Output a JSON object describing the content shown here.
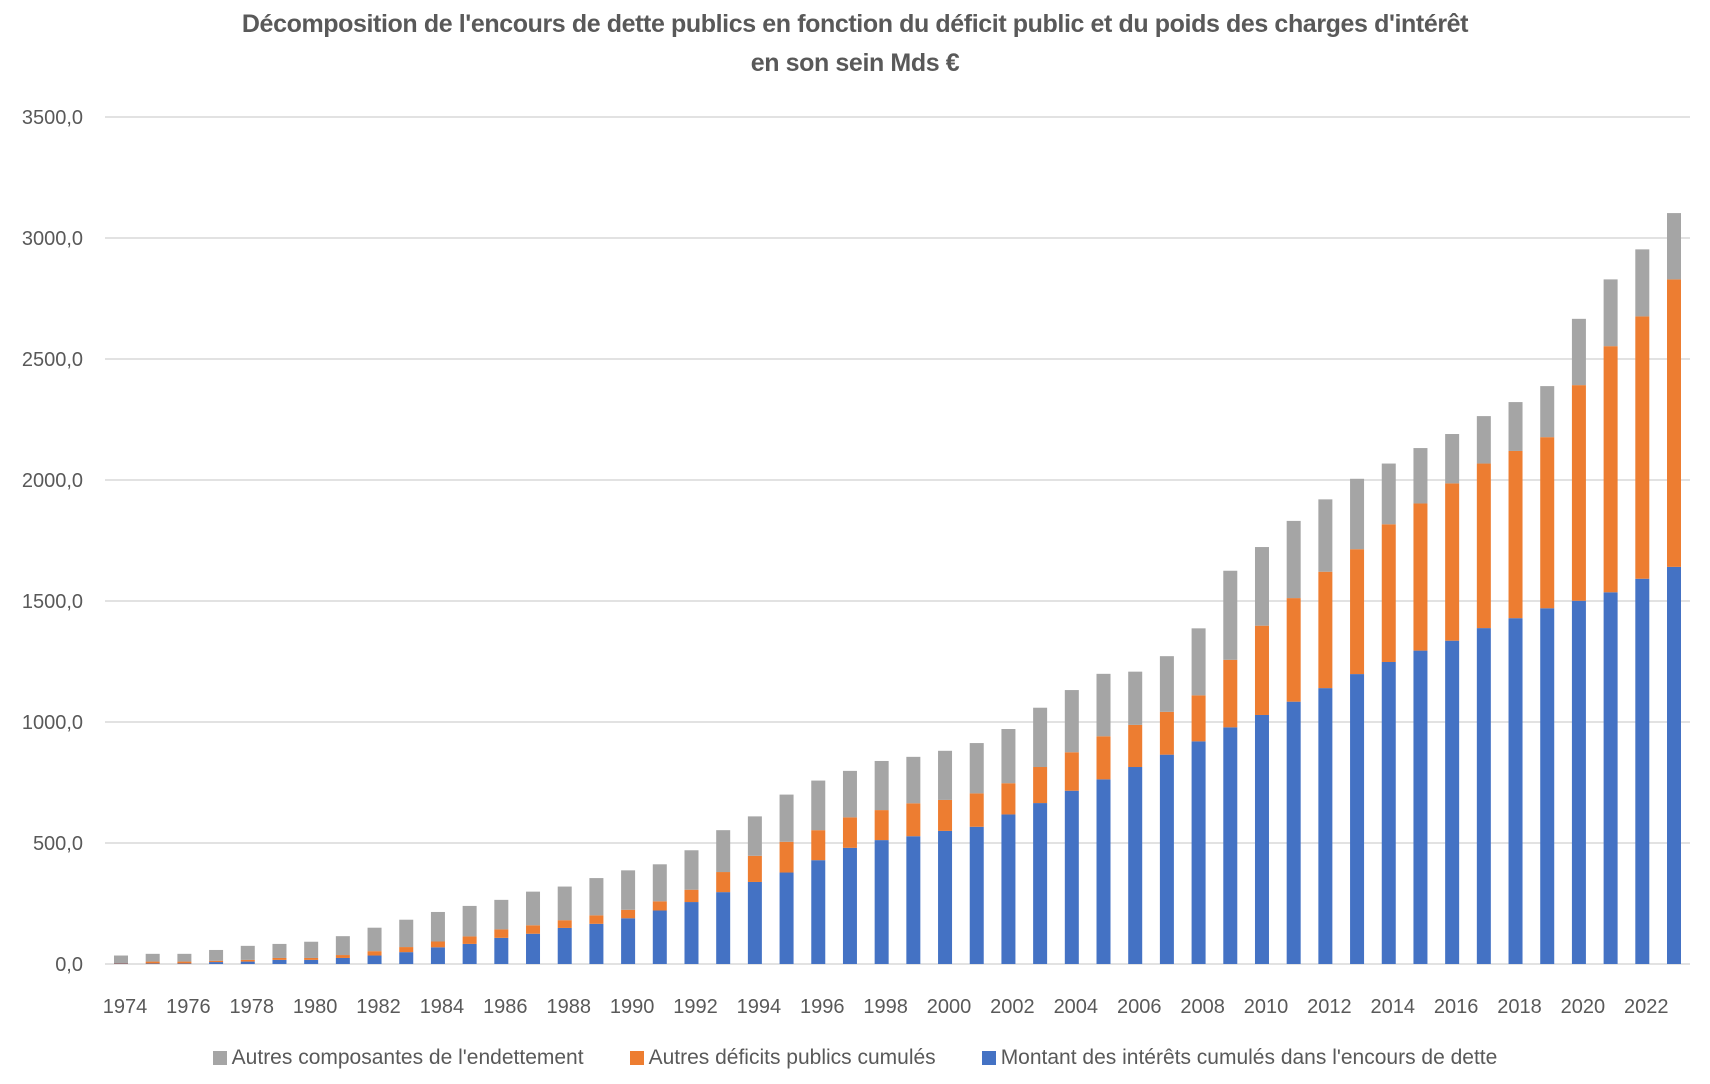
{
  "chart_data": {
    "type": "bar",
    "stacked": true,
    "title": "Décomposition de l'encours de dette publics en fonction du déficit public et du poids des charges d'intérêt en son sein Mds €",
    "title_lines": [
      "Décomposition de l'encours de dette publics en fonction du déficit public et du poids des charges d'intérêt",
      "en son sein Mds €"
    ],
    "xlabel": "",
    "ylabel": "",
    "ylim": [
      0,
      3500
    ],
    "yticks": [
      0,
      500,
      1000,
      1500,
      2000,
      2500,
      3000,
      3500
    ],
    "ytick_labels": [
      "0,0",
      "500,0",
      "1000,0",
      "1500,0",
      "2000,0",
      "2500,0",
      "3000,0",
      "3500,0"
    ],
    "grid": true,
    "legend_position": "bottom",
    "categories": [
      1974,
      1975,
      1976,
      1977,
      1978,
      1979,
      1980,
      1981,
      1982,
      1983,
      1984,
      1985,
      1986,
      1987,
      1988,
      1989,
      1990,
      1991,
      1992,
      1993,
      1994,
      1995,
      1996,
      1997,
      1998,
      1999,
      2000,
      2001,
      2002,
      2003,
      2004,
      2005,
      2006,
      2007,
      2008,
      2009,
      2010,
      2011,
      2012,
      2013,
      2014,
      2015,
      2016,
      2017,
      2018,
      2019,
      2020,
      2021,
      2022,
      2023
    ],
    "xtick_labels": [
      "1974",
      "1976",
      "1978",
      "1980",
      "1982",
      "1984",
      "1986",
      "1988",
      "1990",
      "1992",
      "1994",
      "1996",
      "1998",
      "2000",
      "2002",
      "2004",
      "2006",
      "2008",
      "2010",
      "2012",
      "2014",
      "2016",
      "2018",
      "2020",
      "2022"
    ],
    "series": [
      {
        "name": "Montant des intérêts cumulés dans l'encours de dette",
        "color": "#4472C4",
        "values": [
          2,
          2,
          2,
          8,
          10,
          17,
          17,
          25,
          35,
          49,
          69,
          83,
          108,
          125,
          149,
          166,
          189,
          221,
          256,
          297,
          339,
          378,
          429,
          480,
          512,
          528,
          550,
          567,
          618,
          665,
          716,
          763,
          814,
          865,
          920,
          978,
          1029,
          1084,
          1140,
          1198,
          1248,
          1295,
          1336,
          1388,
          1429,
          1470,
          1501,
          1536,
          1592,
          1641
        ]
      },
      {
        "name": "Autres déficits publics cumulés",
        "color": "#ED7D31",
        "values": [
          2,
          8,
          8,
          5,
          7,
          8,
          8,
          12,
          18,
          21,
          24,
          31,
          35,
          35,
          32,
          35,
          35,
          38,
          51,
          83,
          108,
          127,
          124,
          126,
          124,
          136,
          128,
          138,
          129,
          149,
          159,
          178,
          174,
          177,
          190,
          279,
          369,
          428,
          481,
          516,
          569,
          608,
          650,
          680,
          691,
          707,
          891,
          1017,
          1084,
          1188
        ]
      },
      {
        "name": "Autres composantes de l'endettement",
        "color": "#A5A5A5",
        "values": [
          31,
          32,
          32,
          45,
          58,
          58,
          67,
          78,
          97,
          113,
          122,
          126,
          122,
          139,
          139,
          154,
          163,
          153,
          163,
          173,
          163,
          195,
          205,
          192,
          203,
          192,
          203,
          208,
          224,
          245,
          257,
          258,
          220,
          230,
          277,
          368,
          325,
          319,
          299,
          291,
          251,
          229,
          204,
          196,
          202,
          211,
          274,
          276,
          277,
          274
        ]
      }
    ],
    "legend": [
      {
        "label": "Autres composantes de l'endettement",
        "color": "#A5A5A5"
      },
      {
        "label": "Autres déficits publics cumulés",
        "color": "#ED7D31"
      },
      {
        "label": "Montant des intérêts cumulés dans l'encours de dette",
        "color": "#4472C4"
      }
    ]
  }
}
